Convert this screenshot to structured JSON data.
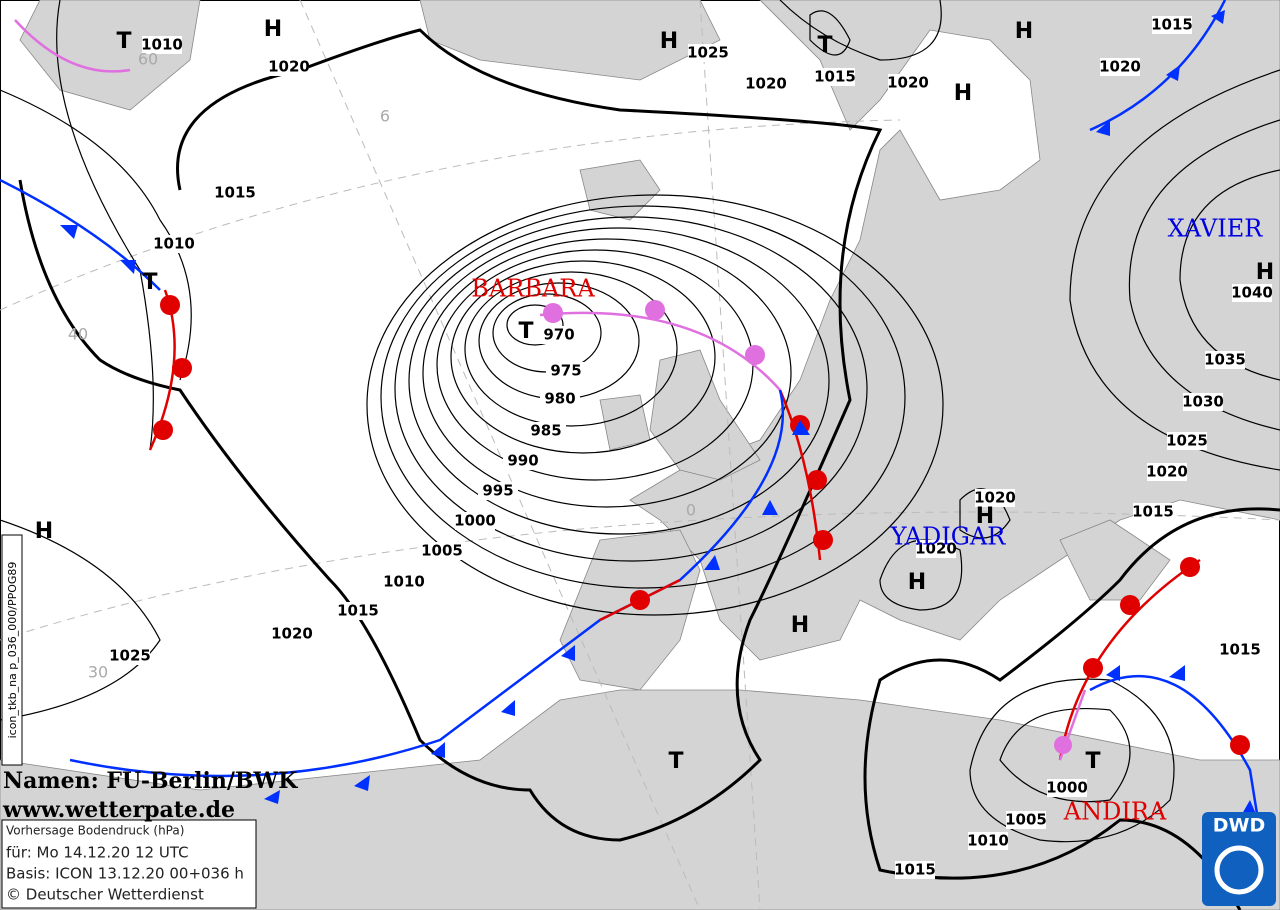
{
  "isobar_labels": [
    1010,
    1020,
    1015,
    1010,
    1025,
    1020,
    1015,
    1020,
    1015,
    1020,
    1040,
    1035,
    1030,
    1025,
    1020,
    1015,
    1015,
    970,
    975,
    980,
    985,
    990,
    995,
    1000,
    1005,
    1010,
    1015,
    1020,
    1025,
    1020,
    1020,
    1000,
    1005,
    1010,
    1015
  ],
  "pressure_centers": [
    "T",
    "H",
    "H",
    "T",
    "H",
    "H",
    "T",
    "T",
    "H",
    "H",
    "H",
    "H",
    "H",
    "T",
    "T"
  ],
  "system_names": [
    "BARBARA",
    "XAVIER",
    "YADIGAR",
    "ANDIRA"
  ],
  "grid_labels": [
    "60",
    "6",
    "40",
    "0",
    "30"
  ],
  "credits": [
    "Namen: FU-Berlin/BWK",
    "www.wetterpate.de"
  ],
  "info_box": [
    "Vorhersage Bodendruck (hPa)",
    "für:  Mo 14.12.20  12 UTC",
    "Basis: ICON  13.12.20 00+036 h",
    "© Deutscher Wetterdienst"
  ],
  "side_text": "icon_tkb_na p_036_000/PPOG89",
  "logo": "DWD"
}
